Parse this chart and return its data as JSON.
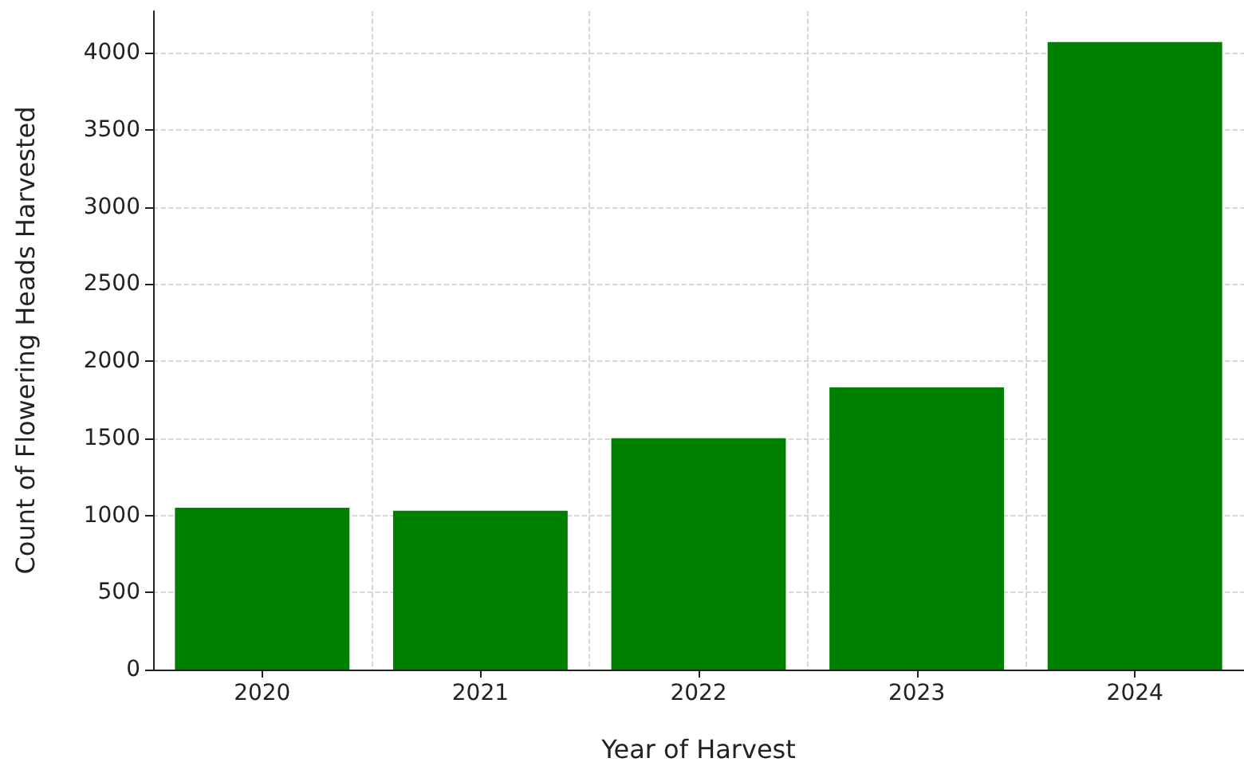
{
  "chart_data": {
    "type": "bar",
    "xlabel": "Year of Harvest",
    "ylabel": "Count of Flowering Heads Harvested",
    "categories": [
      "2020",
      "2021",
      "2022",
      "2023",
      "2024"
    ],
    "values": [
      1050,
      1030,
      1500,
      1830,
      4070
    ],
    "color": "#008000",
    "ylim": [
      0,
      4270
    ],
    "yticks": [
      0,
      500,
      1000,
      1500,
      2000,
      2500,
      3000,
      3500,
      4000
    ],
    "grid": true
  }
}
